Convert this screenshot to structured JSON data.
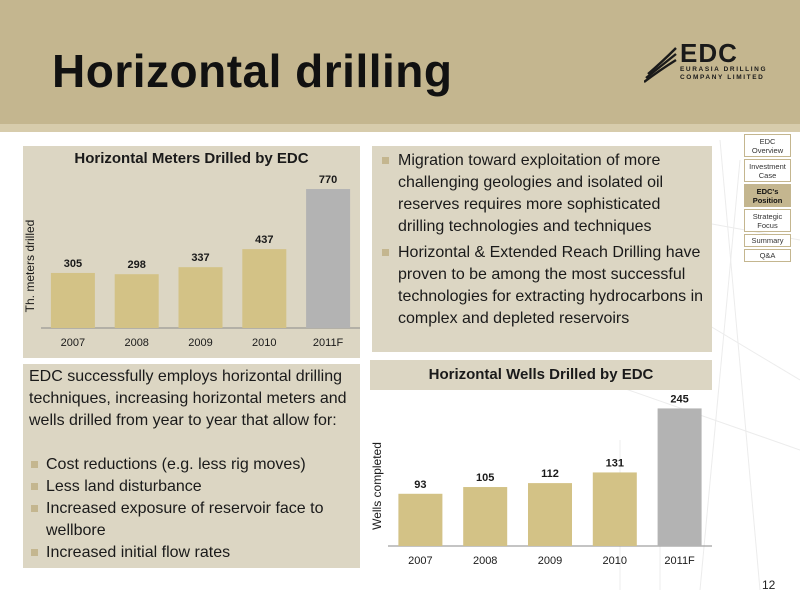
{
  "slide": {
    "title": "Horizontal drilling",
    "page_number": "12"
  },
  "logo": {
    "main": "EDC",
    "line1": "EURASIA DRILLING",
    "line2": "COMPANY LIMITED"
  },
  "nav": {
    "items": [
      {
        "label": "EDC Overview",
        "active": false
      },
      {
        "label": "Investment Case",
        "active": false
      },
      {
        "label": "EDC's Position",
        "active": true
      },
      {
        "label": "Strategic Focus",
        "active": false
      },
      {
        "label": "Summary",
        "active": false
      },
      {
        "label": "Q&A",
        "active": false
      }
    ]
  },
  "bullets": [
    "Migration toward exploitation of more challenging geologies and isolated oil reserves requires more sophisticated drilling technologies and techniques",
    "Horizontal & Extended Reach Drilling have proven to be among the most successful technologies for extracting hydrocarbons in complex and depleted reservoirs"
  ],
  "text_panel": {
    "intro": "EDC successfully employs horizontal drilling techniques, increasing horizontal meters and wells drilled from year to year that allow for:",
    "items": [
      "Cost reductions (e.g. less rig moves)",
      "Less land disturbance",
      "Increased exposure of reservoir face to wellbore",
      "Increased initial flow rates"
    ]
  },
  "colors": {
    "header": "#c4b68f",
    "panel": "#dcd6c3",
    "bar_actual": "#d3c286",
    "bar_forecast": "#b3b3b3"
  },
  "chart_data": [
    {
      "type": "bar",
      "title": "Horizontal Meters Drilled by EDC",
      "xlabel": "",
      "ylabel": "Th. meters drilled",
      "categories": [
        "2007",
        "2008",
        "2009",
        "2010",
        "2011F"
      ],
      "values": [
        305,
        298,
        337,
        437,
        770
      ],
      "ylim": [
        0,
        820
      ],
      "forecast_category": "2011F",
      "grid": false
    },
    {
      "type": "bar",
      "title": "Horizontal Wells Drilled by EDC",
      "xlabel": "",
      "ylabel": "Wells completed",
      "categories": [
        "2007",
        "2008",
        "2009",
        "2010",
        "2011F"
      ],
      "values": [
        93,
        105,
        112,
        131,
        245
      ],
      "ylim": [
        0,
        260
      ],
      "forecast_category": "2011F",
      "grid": false
    }
  ]
}
